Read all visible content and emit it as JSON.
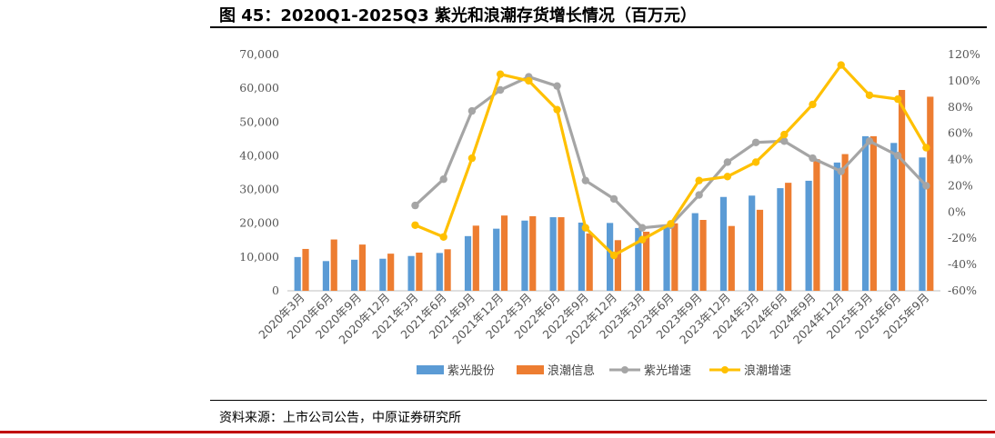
{
  "header": {
    "title": "图 45：2020Q1-2025Q3  紫光和浪潮存货增长情况（百万元）"
  },
  "footer": {
    "source": "资料来源：上市公司公告，中原证券研究所"
  },
  "colors": {
    "ziguang_bar": "#5B9BD5",
    "langchao_bar": "#ED7D31",
    "ziguang_line": "#A5A5A5",
    "langchao_line": "#FFC000",
    "bottom_rule": "#C00000"
  },
  "chart_data": {
    "type": "bar",
    "categories": [
      "2020年3月",
      "2020年6月",
      "2020年9月",
      "2020年12月",
      "2021年3月",
      "2021年6月",
      "2021年9月",
      "2021年12月",
      "2022年3月",
      "2022年6月",
      "2022年9月",
      "2022年12月",
      "2023年3月",
      "2023年6月",
      "2023年9月",
      "2023年12月",
      "2024年3月",
      "2024年6月",
      "2024年9月",
      "2024年12月",
      "2025年3月",
      "2025年6月",
      "2025年9月"
    ],
    "series": [
      {
        "name": "紫光股份",
        "kind": "bar",
        "axis": "left",
        "values": [
          10000,
          8800,
          9200,
          9500,
          10300,
          11200,
          16200,
          18400,
          20800,
          21800,
          20200,
          20100,
          18600,
          19600,
          23000,
          27800,
          28200,
          30400,
          32600,
          38000,
          45800,
          43800,
          39500
        ]
      },
      {
        "name": "浪潮信息",
        "kind": "bar",
        "axis": "left",
        "values": [
          12400,
          15200,
          13700,
          11000,
          11300,
          12300,
          19300,
          22300,
          22100,
          21800,
          17000,
          15000,
          17500,
          20000,
          21000,
          19200,
          24000,
          32000,
          39000,
          40500,
          45800,
          59500,
          57500
        ]
      },
      {
        "name": "紫光增速",
        "kind": "line",
        "axis": "right",
        "values": [
          null,
          null,
          null,
          null,
          5,
          25,
          77,
          93,
          103,
          96,
          24,
          10,
          -12,
          -10,
          13,
          38,
          53,
          54,
          41,
          31,
          54,
          43,
          20
        ]
      },
      {
        "name": "浪潮增速",
        "kind": "line",
        "axis": "right",
        "values": [
          null,
          null,
          null,
          null,
          -10,
          -19,
          41,
          105,
          100,
          78,
          -12,
          -33,
          -21,
          -9,
          24,
          27,
          38,
          59,
          82,
          112,
          89,
          86,
          49
        ]
      }
    ],
    "y_left": {
      "min": 0,
      "max": 70000,
      "step": 10000,
      "ticks": [
        "0",
        "10,000",
        "20,000",
        "30,000",
        "40,000",
        "50,000",
        "60,000",
        "70,000"
      ]
    },
    "y_right": {
      "min": -60,
      "max": 120,
      "step": 20,
      "ticks": [
        "-60%",
        "-40%",
        "-20%",
        "0%",
        "20%",
        "40%",
        "60%",
        "80%",
        "100%",
        "120%"
      ]
    },
    "grid": false,
    "legend_position": "bottom"
  }
}
